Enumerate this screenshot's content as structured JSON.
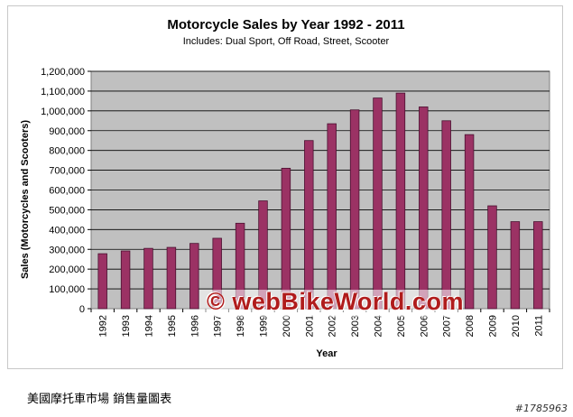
{
  "chart_data": {
    "type": "bar",
    "title": "Motorcycle Sales by Year 1992 - 2011",
    "subtitle": "Includes: Dual Sport, Off Road, Street, Scooter",
    "xlabel": "Year",
    "ylabel": "Sales (Motorcycles and Scooters)",
    "ylim": [
      0,
      1200000
    ],
    "ytick_step": 100000,
    "ytick_labels": [
      "0",
      "100,000",
      "200,000",
      "300,000",
      "400,000",
      "500,000",
      "600,000",
      "700,000",
      "800,000",
      "900,000",
      "1,000,000",
      "1,100,000",
      "1,200,000"
    ],
    "grid": true,
    "legend": "none",
    "categories": [
      "1992",
      "1993",
      "1994",
      "1995",
      "1996",
      "1997",
      "1998",
      "1999",
      "2000",
      "2001",
      "2002",
      "2003",
      "2004",
      "2005",
      "2006",
      "2007",
      "2008",
      "2009",
      "2010",
      "2011"
    ],
    "values": [
      278000,
      292000,
      305000,
      310000,
      330000,
      356000,
      432000,
      545000,
      710000,
      850000,
      935000,
      1005000,
      1065000,
      1090000,
      1020000,
      950000,
      880000,
      520000,
      440000,
      440000
    ]
  },
  "colors": {
    "bar_fill": "#9b3264",
    "bar_stroke": "#4a1030",
    "plot_bg": "#c0c0c0",
    "grid": "#000000"
  },
  "watermark_text": "© webBikeWorld.com",
  "caption": "美國摩托車市場 銷售量圖表",
  "image_id": "#1785963"
}
